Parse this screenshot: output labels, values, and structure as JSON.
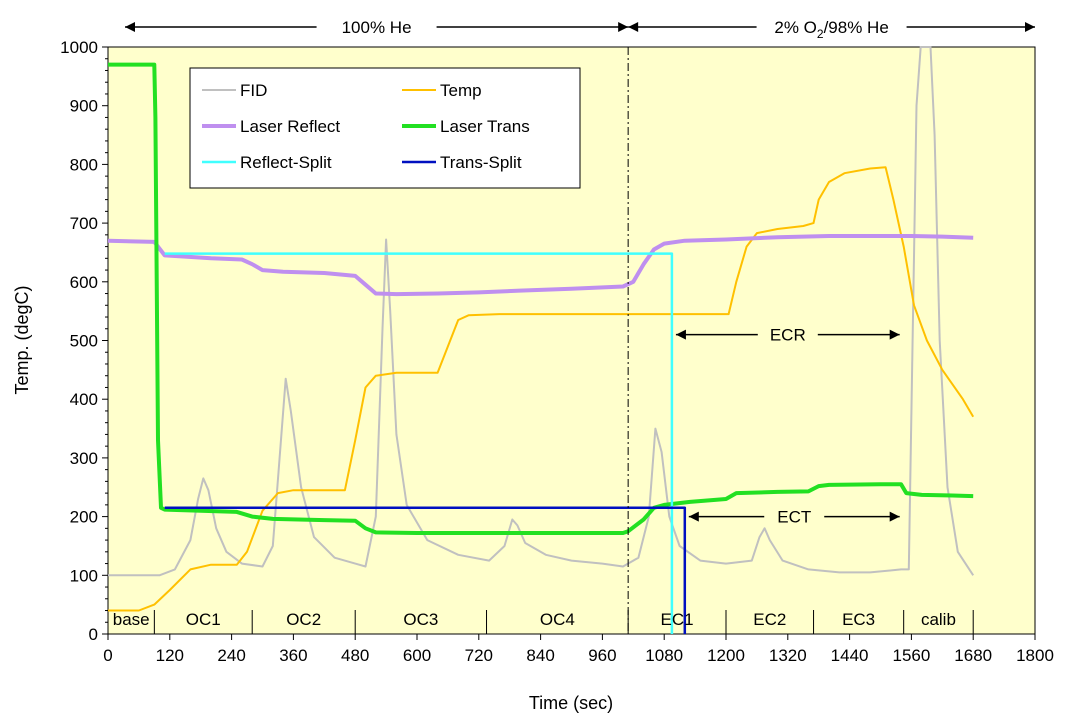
{
  "chart_data": {
    "type": "line",
    "title": "",
    "xlabel": "Time (sec)",
    "ylabel": "Temp. (degC)",
    "xlim": [
      0,
      1800
    ],
    "ylim": [
      0,
      1000
    ],
    "x_ticks": [
      "0",
      "120",
      "240",
      "360",
      "480",
      "600",
      "720",
      "840",
      "960",
      "1080",
      "1200",
      "1320",
      "1440",
      "1560",
      "1680",
      "1800"
    ],
    "y_ticks": [
      "0",
      "100",
      "200",
      "300",
      "400",
      "500",
      "600",
      "700",
      "800",
      "900",
      "1000"
    ],
    "grid": false,
    "legend_position": "top-left",
    "colors": {
      "plot_background": "#ffffcc",
      "FID": "#c0c0c0",
      "Temp": "#ffc000",
      "Laser Reflect": "#bf8fef",
      "Laser Trans": "#22e022",
      "Reflect-Split": "#40ffff",
      "Trans-Split": "#0010c0"
    },
    "series": [
      {
        "name": "FID",
        "points": [
          [
            0,
            100
          ],
          [
            60,
            100
          ],
          [
            100,
            100
          ],
          [
            130,
            110
          ],
          [
            160,
            160
          ],
          [
            175,
            230
          ],
          [
            185,
            265
          ],
          [
            195,
            245
          ],
          [
            210,
            180
          ],
          [
            230,
            140
          ],
          [
            260,
            120
          ],
          [
            300,
            115
          ],
          [
            320,
            150
          ],
          [
            335,
            320
          ],
          [
            345,
            435
          ],
          [
            355,
            380
          ],
          [
            375,
            250
          ],
          [
            400,
            165
          ],
          [
            440,
            130
          ],
          [
            480,
            120
          ],
          [
            500,
            115
          ],
          [
            520,
            200
          ],
          [
            533,
            520
          ],
          [
            540,
            672
          ],
          [
            548,
            550
          ],
          [
            560,
            340
          ],
          [
            580,
            220
          ],
          [
            620,
            160
          ],
          [
            680,
            135
          ],
          [
            740,
            125
          ],
          [
            770,
            150
          ],
          [
            785,
            195
          ],
          [
            795,
            185
          ],
          [
            810,
            155
          ],
          [
            850,
            135
          ],
          [
            900,
            125
          ],
          [
            960,
            120
          ],
          [
            1000,
            115
          ],
          [
            1030,
            130
          ],
          [
            1050,
            200
          ],
          [
            1063,
            350
          ],
          [
            1075,
            310
          ],
          [
            1090,
            200
          ],
          [
            1110,
            150
          ],
          [
            1150,
            125
          ],
          [
            1200,
            120
          ],
          [
            1250,
            125
          ],
          [
            1265,
            165
          ],
          [
            1275,
            180
          ],
          [
            1285,
            160
          ],
          [
            1310,
            125
          ],
          [
            1360,
            110
          ],
          [
            1420,
            105
          ],
          [
            1480,
            105
          ],
          [
            1540,
            110
          ],
          [
            1555,
            110
          ],
          [
            1570,
            900
          ],
          [
            1578,
            1000
          ],
          [
            1597,
            1000
          ],
          [
            1605,
            850
          ],
          [
            1615,
            500
          ],
          [
            1630,
            250
          ],
          [
            1650,
            140
          ],
          [
            1680,
            100
          ]
        ]
      },
      {
        "name": "Temp",
        "points": [
          [
            0,
            40
          ],
          [
            60,
            40
          ],
          [
            90,
            50
          ],
          [
            120,
            75
          ],
          [
            160,
            110
          ],
          [
            200,
            118
          ],
          [
            250,
            118
          ],
          [
            270,
            140
          ],
          [
            300,
            210
          ],
          [
            330,
            240
          ],
          [
            360,
            245
          ],
          [
            460,
            245
          ],
          [
            480,
            330
          ],
          [
            500,
            420
          ],
          [
            520,
            440
          ],
          [
            560,
            445
          ],
          [
            640,
            445
          ],
          [
            660,
            490
          ],
          [
            680,
            535
          ],
          [
            700,
            543
          ],
          [
            760,
            545
          ],
          [
            900,
            545
          ],
          [
            1000,
            545
          ],
          [
            1100,
            545
          ],
          [
            1205,
            545
          ],
          [
            1220,
            600
          ],
          [
            1240,
            660
          ],
          [
            1260,
            683
          ],
          [
            1300,
            690
          ],
          [
            1350,
            695
          ],
          [
            1370,
            700
          ],
          [
            1380,
            740
          ],
          [
            1400,
            770
          ],
          [
            1430,
            785
          ],
          [
            1480,
            793
          ],
          [
            1510,
            795
          ],
          [
            1525,
            740
          ],
          [
            1545,
            660
          ],
          [
            1565,
            560
          ],
          [
            1590,
            500
          ],
          [
            1620,
            450
          ],
          [
            1660,
            400
          ],
          [
            1680,
            370
          ]
        ]
      },
      {
        "name": "Laser Reflect",
        "points": [
          [
            0,
            670
          ],
          [
            90,
            668
          ],
          [
            110,
            645
          ],
          [
            150,
            643
          ],
          [
            200,
            640
          ],
          [
            260,
            638
          ],
          [
            280,
            630
          ],
          [
            300,
            620
          ],
          [
            340,
            617
          ],
          [
            420,
            615
          ],
          [
            480,
            610
          ],
          [
            500,
            595
          ],
          [
            520,
            580
          ],
          [
            560,
            579
          ],
          [
            640,
            580
          ],
          [
            720,
            582
          ],
          [
            800,
            585
          ],
          [
            900,
            588
          ],
          [
            1000,
            592
          ],
          [
            1020,
            600
          ],
          [
            1040,
            630
          ],
          [
            1060,
            655
          ],
          [
            1080,
            665
          ],
          [
            1120,
            670
          ],
          [
            1200,
            672
          ],
          [
            1300,
            676
          ],
          [
            1400,
            678
          ],
          [
            1500,
            678
          ],
          [
            1560,
            678
          ],
          [
            1620,
            677
          ],
          [
            1680,
            675
          ]
        ]
      },
      {
        "name": "Laser Trans",
        "points": [
          [
            0,
            970
          ],
          [
            90,
            970
          ],
          [
            92,
            880
          ],
          [
            97,
            330
          ],
          [
            103,
            215
          ],
          [
            110,
            212
          ],
          [
            180,
            210
          ],
          [
            250,
            208
          ],
          [
            280,
            200
          ],
          [
            320,
            196
          ],
          [
            420,
            194
          ],
          [
            480,
            193
          ],
          [
            500,
            180
          ],
          [
            520,
            173
          ],
          [
            600,
            172
          ],
          [
            700,
            172
          ],
          [
            800,
            172
          ],
          [
            900,
            172
          ],
          [
            1000,
            172
          ],
          [
            1010,
            175
          ],
          [
            1040,
            195
          ],
          [
            1060,
            215
          ],
          [
            1080,
            220
          ],
          [
            1130,
            225
          ],
          [
            1200,
            230
          ],
          [
            1220,
            240
          ],
          [
            1300,
            242
          ],
          [
            1360,
            243
          ],
          [
            1380,
            252
          ],
          [
            1400,
            254
          ],
          [
            1500,
            255
          ],
          [
            1540,
            255
          ],
          [
            1550,
            240
          ],
          [
            1580,
            237
          ],
          [
            1640,
            236
          ],
          [
            1680,
            235
          ]
        ]
      },
      {
        "name": "Reflect-Split",
        "points": [
          [
            110,
            648
          ],
          [
            1095,
            648
          ],
          [
            1095,
            0
          ]
        ]
      },
      {
        "name": "Trans-Split",
        "points": [
          [
            110,
            215
          ],
          [
            1120,
            215
          ],
          [
            1120,
            0
          ]
        ]
      }
    ],
    "legend": [
      {
        "name": "FID"
      },
      {
        "name": "Temp"
      },
      {
        "name": "Laser Reflect"
      },
      {
        "name": "Laser Trans"
      },
      {
        "name": "Reflect-Split"
      },
      {
        "name": "Trans-Split"
      }
    ],
    "phases": [
      {
        "label": "base",
        "from": 0,
        "to": 90
      },
      {
        "label": "OC1",
        "from": 90,
        "to": 280
      },
      {
        "label": "OC2",
        "from": 280,
        "to": 480
      },
      {
        "label": "OC3",
        "from": 480,
        "to": 735
      },
      {
        "label": "OC4",
        "from": 735,
        "to": 1010
      },
      {
        "label": "EC1",
        "from": 1010,
        "to": 1200
      },
      {
        "label": "EC2",
        "from": 1200,
        "to": 1370
      },
      {
        "label": "EC3",
        "from": 1370,
        "to": 1545
      },
      {
        "label": "calib",
        "from": 1545,
        "to": 1680
      }
    ],
    "regions": [
      {
        "label": "100% He",
        "from": 0,
        "to": 1010
      },
      {
        "label_main": "2% O",
        "label_sub": "2",
        "label_tail": "/98% He",
        "from": 1010,
        "to": 1800
      }
    ],
    "annotations": [
      {
        "label": "ECR",
        "x_from": 1095,
        "x_to": 1545,
        "y": 510
      },
      {
        "label": "ECT",
        "x_from": 1120,
        "x_to": 1545,
        "y": 200
      }
    ],
    "divider_x": 1010
  }
}
